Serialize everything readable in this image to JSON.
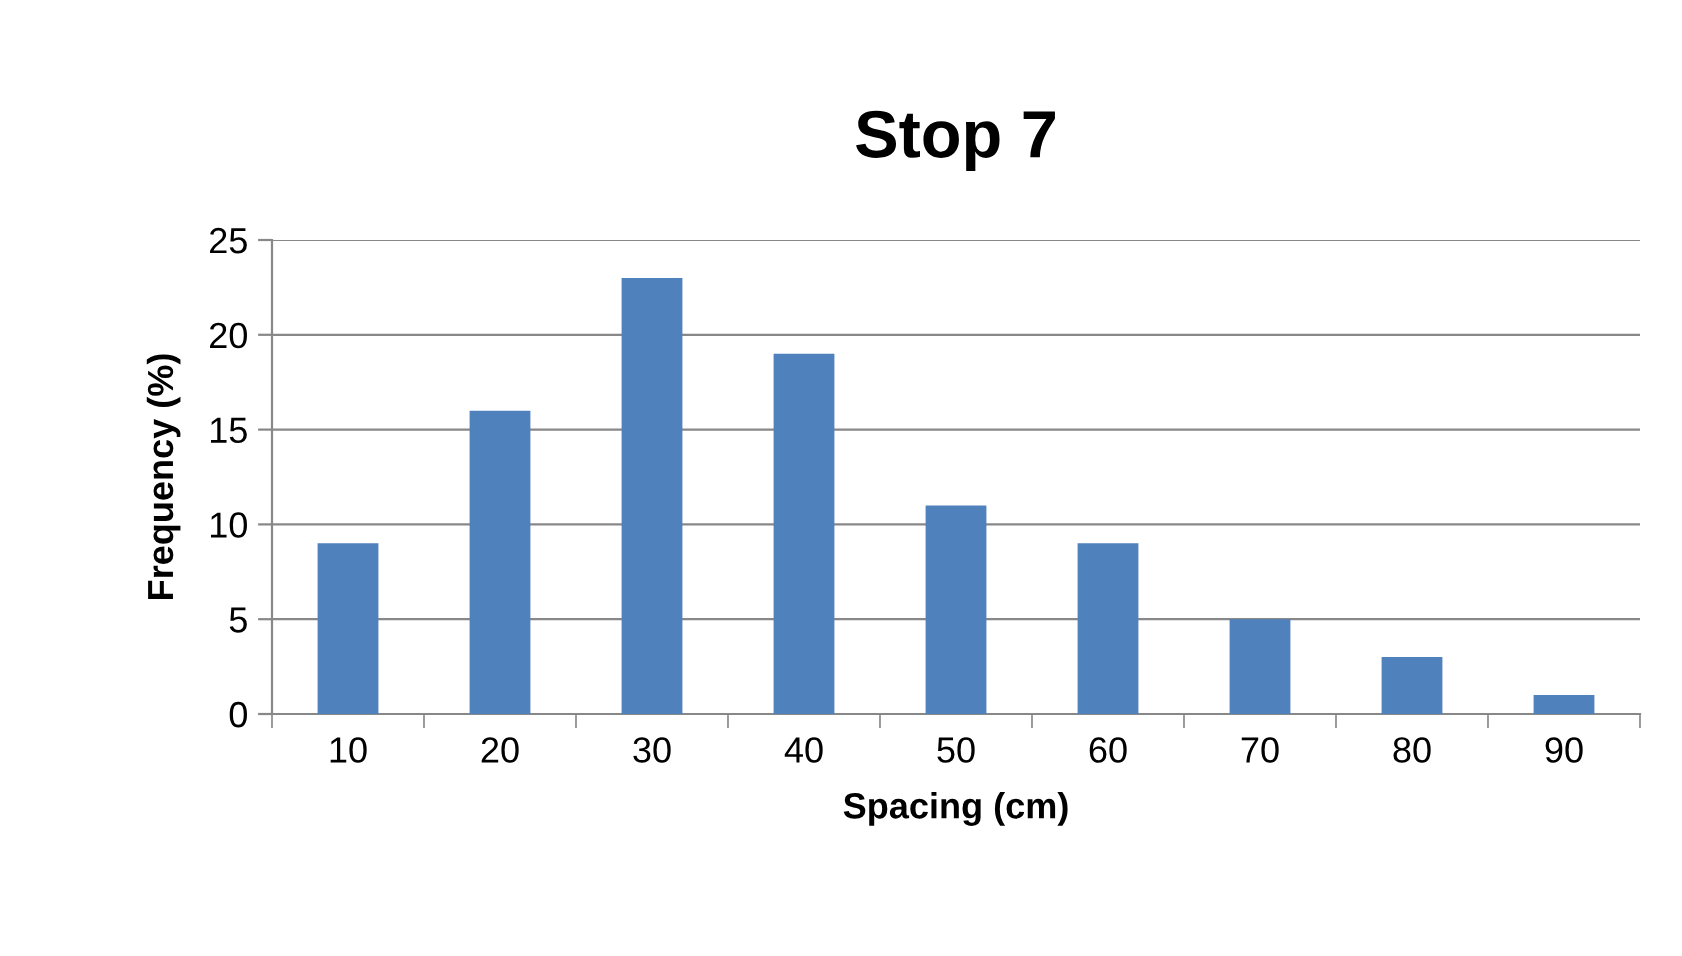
{
  "chart_data": {
    "type": "bar",
    "title": "Stop 7",
    "xlabel": "Spacing (cm)",
    "ylabel": "Frequency (%)",
    "categories": [
      "10",
      "20",
      "30",
      "40",
      "50",
      "60",
      "70",
      "80",
      "90"
    ],
    "values": [
      9,
      16,
      23,
      19,
      11,
      9,
      5,
      3,
      1
    ],
    "color": "#4f81bd",
    "ylim": [
      0,
      25
    ],
    "yticks": [
      0,
      5,
      10,
      15,
      20,
      25
    ],
    "grid": "y",
    "legend": false
  }
}
